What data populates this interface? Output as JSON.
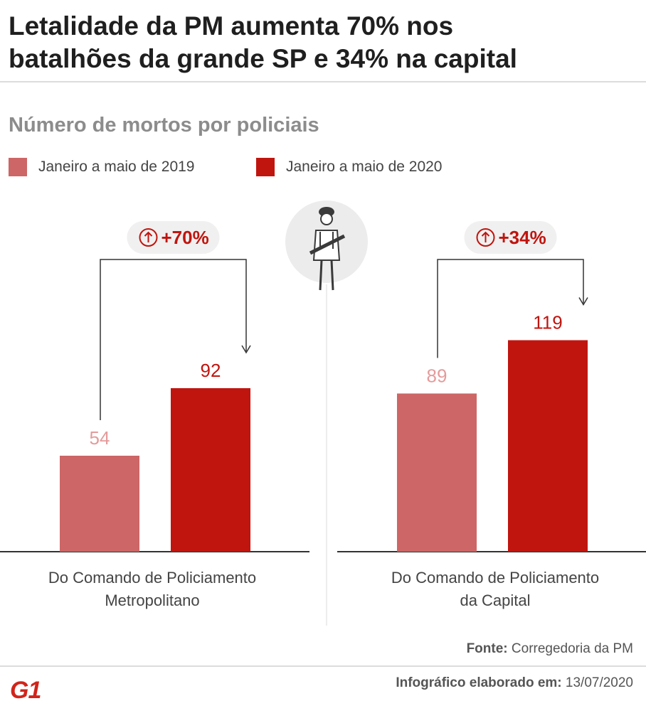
{
  "header": {
    "title_line1": "Letalidade da PM aumenta 70% nos",
    "title_line2": "batalhões da grande SP e 34% na capital"
  },
  "chart_data": {
    "type": "bar",
    "title": "Letalidade da PM aumenta 70% nos batalhões da grande SP e 34% na capital",
    "subtitle": "Número de mortos por policiais",
    "categories": [
      "Do Comando de Policiamento Metropolitano",
      "Do Comando de Policiamento da Capital"
    ],
    "category_lines": [
      [
        "Do Comando de Policiamento",
        "Metropolitano"
      ],
      [
        "Do Comando de Policiamento",
        "da Capital"
      ]
    ],
    "series": [
      {
        "name": "Janeiro a maio de 2019",
        "values": [
          54,
          89
        ],
        "color": "#cd6666"
      },
      {
        "name": "Janeiro a maio de 2020",
        "values": [
          92,
          119
        ],
        "color": "#c0150f"
      }
    ],
    "annotations": [
      "+70%",
      "+34%"
    ],
    "legend": "top-left",
    "grid": false,
    "ylim": [
      0,
      170
    ]
  },
  "icons": {
    "change_arrow": "up-arrow-circle-icon",
    "center_illustration": "police-officer-icon"
  },
  "footer": {
    "source_label": "Fonte:",
    "source_value": "Corregedoria da PM",
    "credit_label": "Infográfico elaborado em:",
    "credit_date": "13/07/2020",
    "logo": "G1"
  }
}
